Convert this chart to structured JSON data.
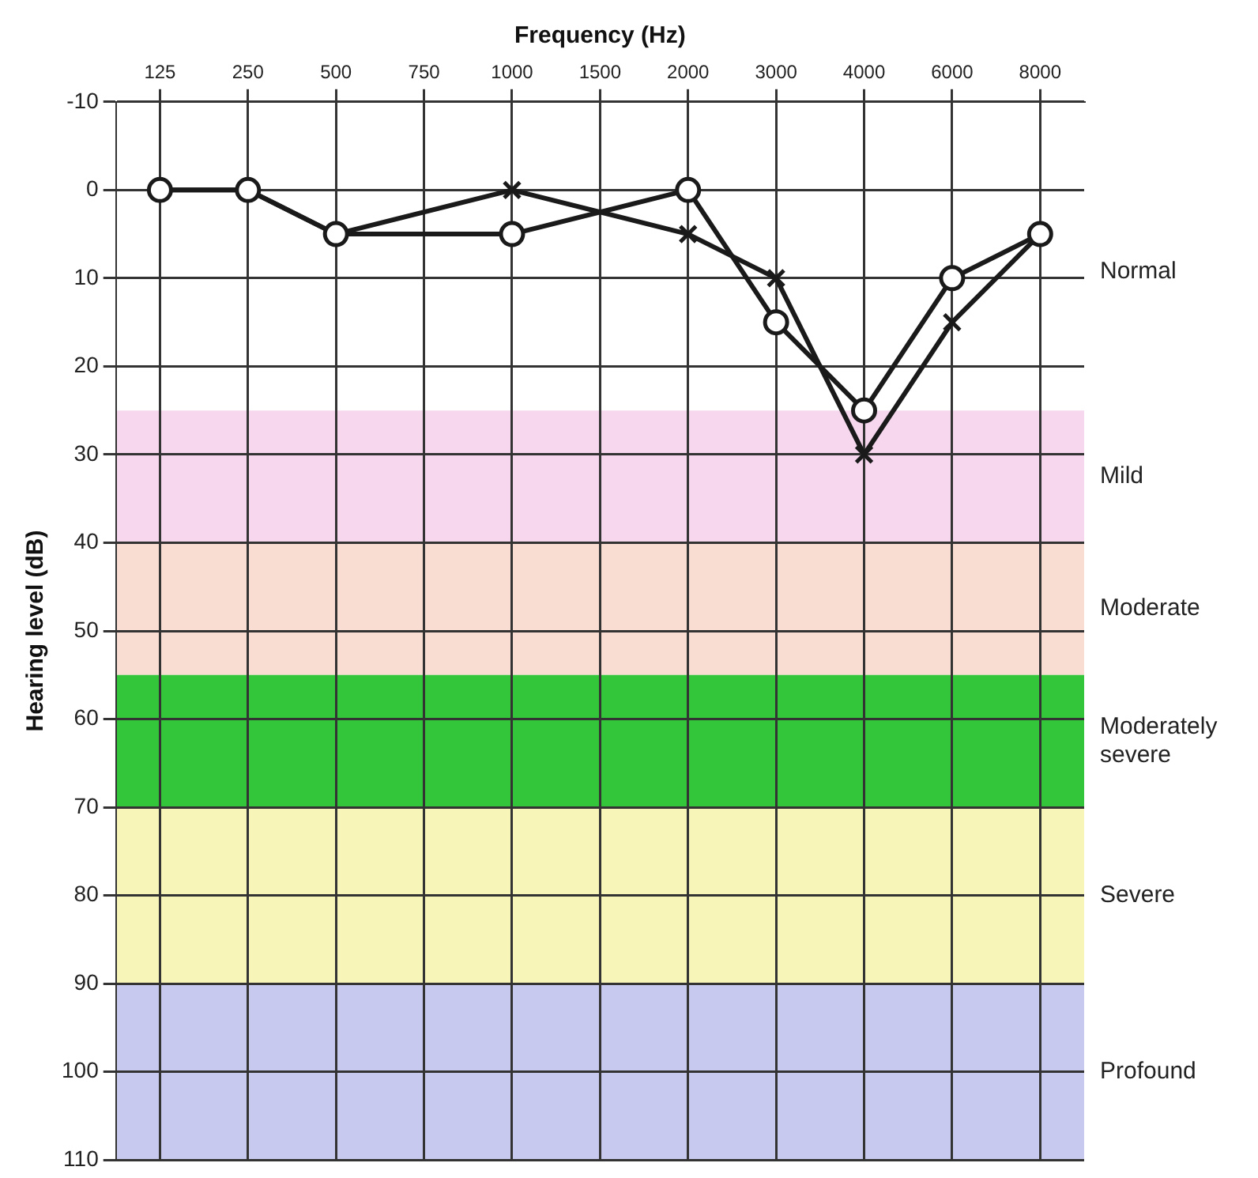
{
  "chart_data": {
    "type": "line",
    "xlabel": "Frequency (Hz)",
    "ylabel": "Hearing level (dB)",
    "categories": [
      "125",
      "250",
      "500",
      "750",
      "1000",
      "1500",
      "2000",
      "3000",
      "4000",
      "6000",
      "8000"
    ],
    "series": [
      {
        "color": "#1a1a1a",
        "marker": "circle",
        "values": [
          0,
          0,
          5,
          null,
          5,
          null,
          0,
          15,
          25,
          10,
          5
        ]
      },
      {
        "color": "#1a1a1a",
        "marker": "cross",
        "values": [
          0,
          0,
          5,
          null,
          0,
          null,
          5,
          10,
          30,
          15,
          5
        ]
      }
    ],
    "annotations": [
      "Normal"
    ],
    "ylim": [
      110,
      -10
    ],
    "yticks": [
      -10,
      0,
      10,
      20,
      30,
      40,
      50,
      60,
      70,
      80,
      90,
      100,
      110
    ],
    "grid": true,
    "legend": false,
    "bands": [
      {
        "axis": "y",
        "from": 25,
        "to": 40,
        "label": "Mild",
        "color": "#f6d7ee"
      },
      {
        "axis": "y",
        "from": 40,
        "to": 55,
        "label": "Moderate",
        "color": "#f9ddd3"
      },
      {
        "axis": "y",
        "from": 55,
        "to": 70,
        "label": "Moderately severe",
        "color": "#33c63a"
      },
      {
        "axis": "y",
        "from": 70,
        "to": 90,
        "label": "Severe",
        "color": "#f8f5b8"
      },
      {
        "axis": "y",
        "from": 90,
        "to": 110,
        "label": "Profound",
        "color": "#c7c9ee"
      }
    ]
  }
}
